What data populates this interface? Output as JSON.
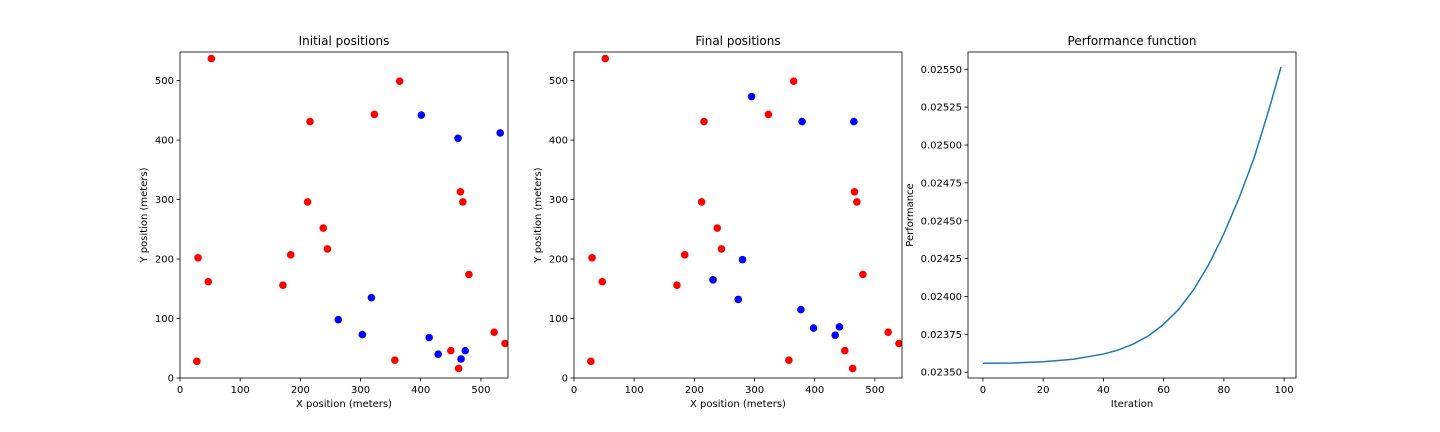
{
  "chart_data": [
    {
      "type": "scatter",
      "title": "Initial positions",
      "xlabel": "X position (meters)",
      "ylabel": "Y position (meters)",
      "xlim": [
        0,
        545
      ],
      "ylim": [
        0,
        548
      ],
      "xticks": [
        0,
        100,
        200,
        300,
        400,
        500
      ],
      "yticks": [
        0,
        100,
        200,
        300,
        400,
        500
      ],
      "grid": false,
      "series": [
        {
          "name": "red",
          "color": "#ff0000",
          "points": [
            [
              52,
              537
            ],
            [
              365,
              499
            ],
            [
              216,
              431
            ],
            [
              323,
              443
            ],
            [
              466,
              313
            ],
            [
              470,
              296
            ],
            [
              212,
              296
            ],
            [
              238,
              252
            ],
            [
              245,
              217
            ],
            [
              30,
              202
            ],
            [
              184,
              207
            ],
            [
              480,
              174
            ],
            [
              47,
              162
            ],
            [
              171,
              156
            ],
            [
              522,
              77
            ],
            [
              540,
              58
            ],
            [
              450,
              46
            ],
            [
              28,
              28
            ],
            [
              357,
              30
            ],
            [
              463,
              16
            ]
          ]
        },
        {
          "name": "blue",
          "color": "#0000ff",
          "points": [
            [
              401,
              442
            ],
            [
              462,
              403
            ],
            [
              532,
              412
            ],
            [
              318,
              135
            ],
            [
              263,
              98
            ],
            [
              303,
              73
            ],
            [
              414,
              68
            ],
            [
              429,
              40
            ],
            [
              474,
              46
            ],
            [
              467,
              32
            ]
          ]
        }
      ]
    },
    {
      "type": "scatter",
      "title": "Final positions",
      "xlabel": "X position (meters)",
      "ylabel": "Y position (meters)",
      "xlim": [
        0,
        545
      ],
      "ylim": [
        0,
        548
      ],
      "xticks": [
        0,
        100,
        200,
        300,
        400,
        500
      ],
      "yticks": [
        0,
        100,
        200,
        300,
        400,
        500
      ],
      "grid": false,
      "series": [
        {
          "name": "red",
          "color": "#ff0000",
          "points": [
            [
              52,
              537
            ],
            [
              365,
              499
            ],
            [
              216,
              431
            ],
            [
              323,
              443
            ],
            [
              466,
              313
            ],
            [
              470,
              296
            ],
            [
              212,
              296
            ],
            [
              238,
              252
            ],
            [
              245,
              217
            ],
            [
              30,
              202
            ],
            [
              184,
              207
            ],
            [
              480,
              174
            ],
            [
              47,
              162
            ],
            [
              171,
              156
            ],
            [
              522,
              77
            ],
            [
              540,
              58
            ],
            [
              450,
              46
            ],
            [
              28,
              28
            ],
            [
              357,
              30
            ],
            [
              463,
              16
            ]
          ]
        },
        {
          "name": "blue",
          "color": "#0000ff",
          "points": [
            [
              295,
              473
            ],
            [
              379,
              431
            ],
            [
              465,
              431
            ],
            [
              280,
              199
            ],
            [
              231,
              165
            ],
            [
              273,
              132
            ],
            [
              377,
              115
            ],
            [
              398,
              84
            ],
            [
              441,
              86
            ],
            [
              434,
              72
            ]
          ]
        }
      ]
    },
    {
      "type": "line",
      "title": "Performance function",
      "xlabel": "Iteration",
      "ylabel": "Performance",
      "xlim": [
        -4.95,
        103.95
      ],
      "ylim": [
        0.023462,
        0.025614
      ],
      "xticks": [
        0,
        20,
        40,
        60,
        80,
        100
      ],
      "yticks": [
        0.0235,
        0.02375,
        0.024,
        0.02425,
        0.0245,
        0.02475,
        0.025,
        0.02525,
        0.0255
      ],
      "ytick_labels": [
        "0.02350",
        "0.02375",
        "0.02400",
        "0.02425",
        "0.02450",
        "0.02475",
        "0.02500",
        "0.02525",
        "0.02550"
      ],
      "grid": false,
      "series": [
        {
          "name": "performance",
          "color": "#1f77b4",
          "x": [
            0,
            10,
            20,
            30,
            40,
            45,
            50,
            55,
            60,
            65,
            70,
            75,
            80,
            85,
            90,
            95,
            99
          ],
          "values": [
            0.023559,
            0.023561,
            0.023569,
            0.023586,
            0.02362,
            0.023647,
            0.023687,
            0.023741,
            0.023817,
            0.023915,
            0.024046,
            0.024211,
            0.024414,
            0.024648,
            0.024912,
            0.025236,
            0.025516
          ]
        }
      ]
    }
  ]
}
